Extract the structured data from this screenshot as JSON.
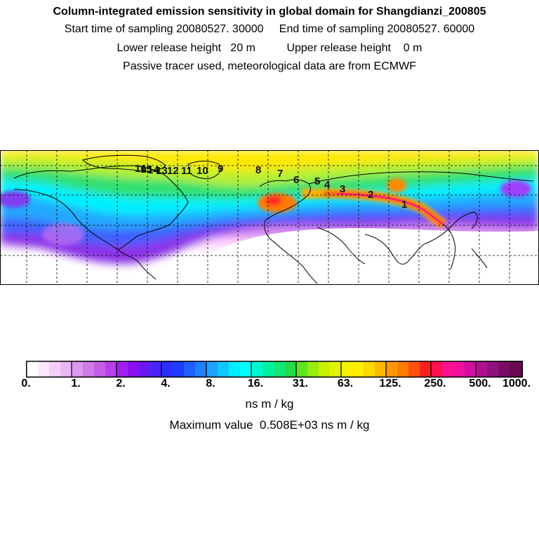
{
  "header": {
    "title": "Column-integrated emission sensitivity in global domain for Shangdianzi_200805",
    "sampling": "Start time of sampling 20080527. 30000     End time of sampling 20080527. 60000",
    "release": "Lower release height   20 m          Upper release height    0 m",
    "tracer": "Passive tracer used, meteorological data are from ECMWF"
  },
  "map": {
    "trajectory_labels": [
      "1",
      "2",
      "3",
      "4",
      "5",
      "6",
      "7",
      "8",
      "9",
      "10",
      "11",
      "12",
      "13",
      "14",
      "15",
      "16"
    ]
  },
  "colorbar": {
    "tick_labels": [
      "0.",
      "1.",
      "2.",
      "4.",
      "8.",
      "16.",
      "31.",
      "63.",
      "125.",
      "250.",
      "500.",
      "1000."
    ],
    "unit": "ns m / kg",
    "max_value_text": "Maximum value  0.508E+03 ns m / kg",
    "colors": {
      "white": "#ffffff",
      "light_violet": "#e8b6f4",
      "violet": "#a020f0",
      "blue": "#1f3cff",
      "sky": "#1ea0ff",
      "cyan": "#00ffff",
      "green": "#22dd44",
      "yellow_green": "#c8f000",
      "yellow": "#ffee00",
      "orange": "#ff7a00",
      "red": "#ff2020",
      "magenta": "#ff1090",
      "purple": "#6a0a50"
    }
  }
}
